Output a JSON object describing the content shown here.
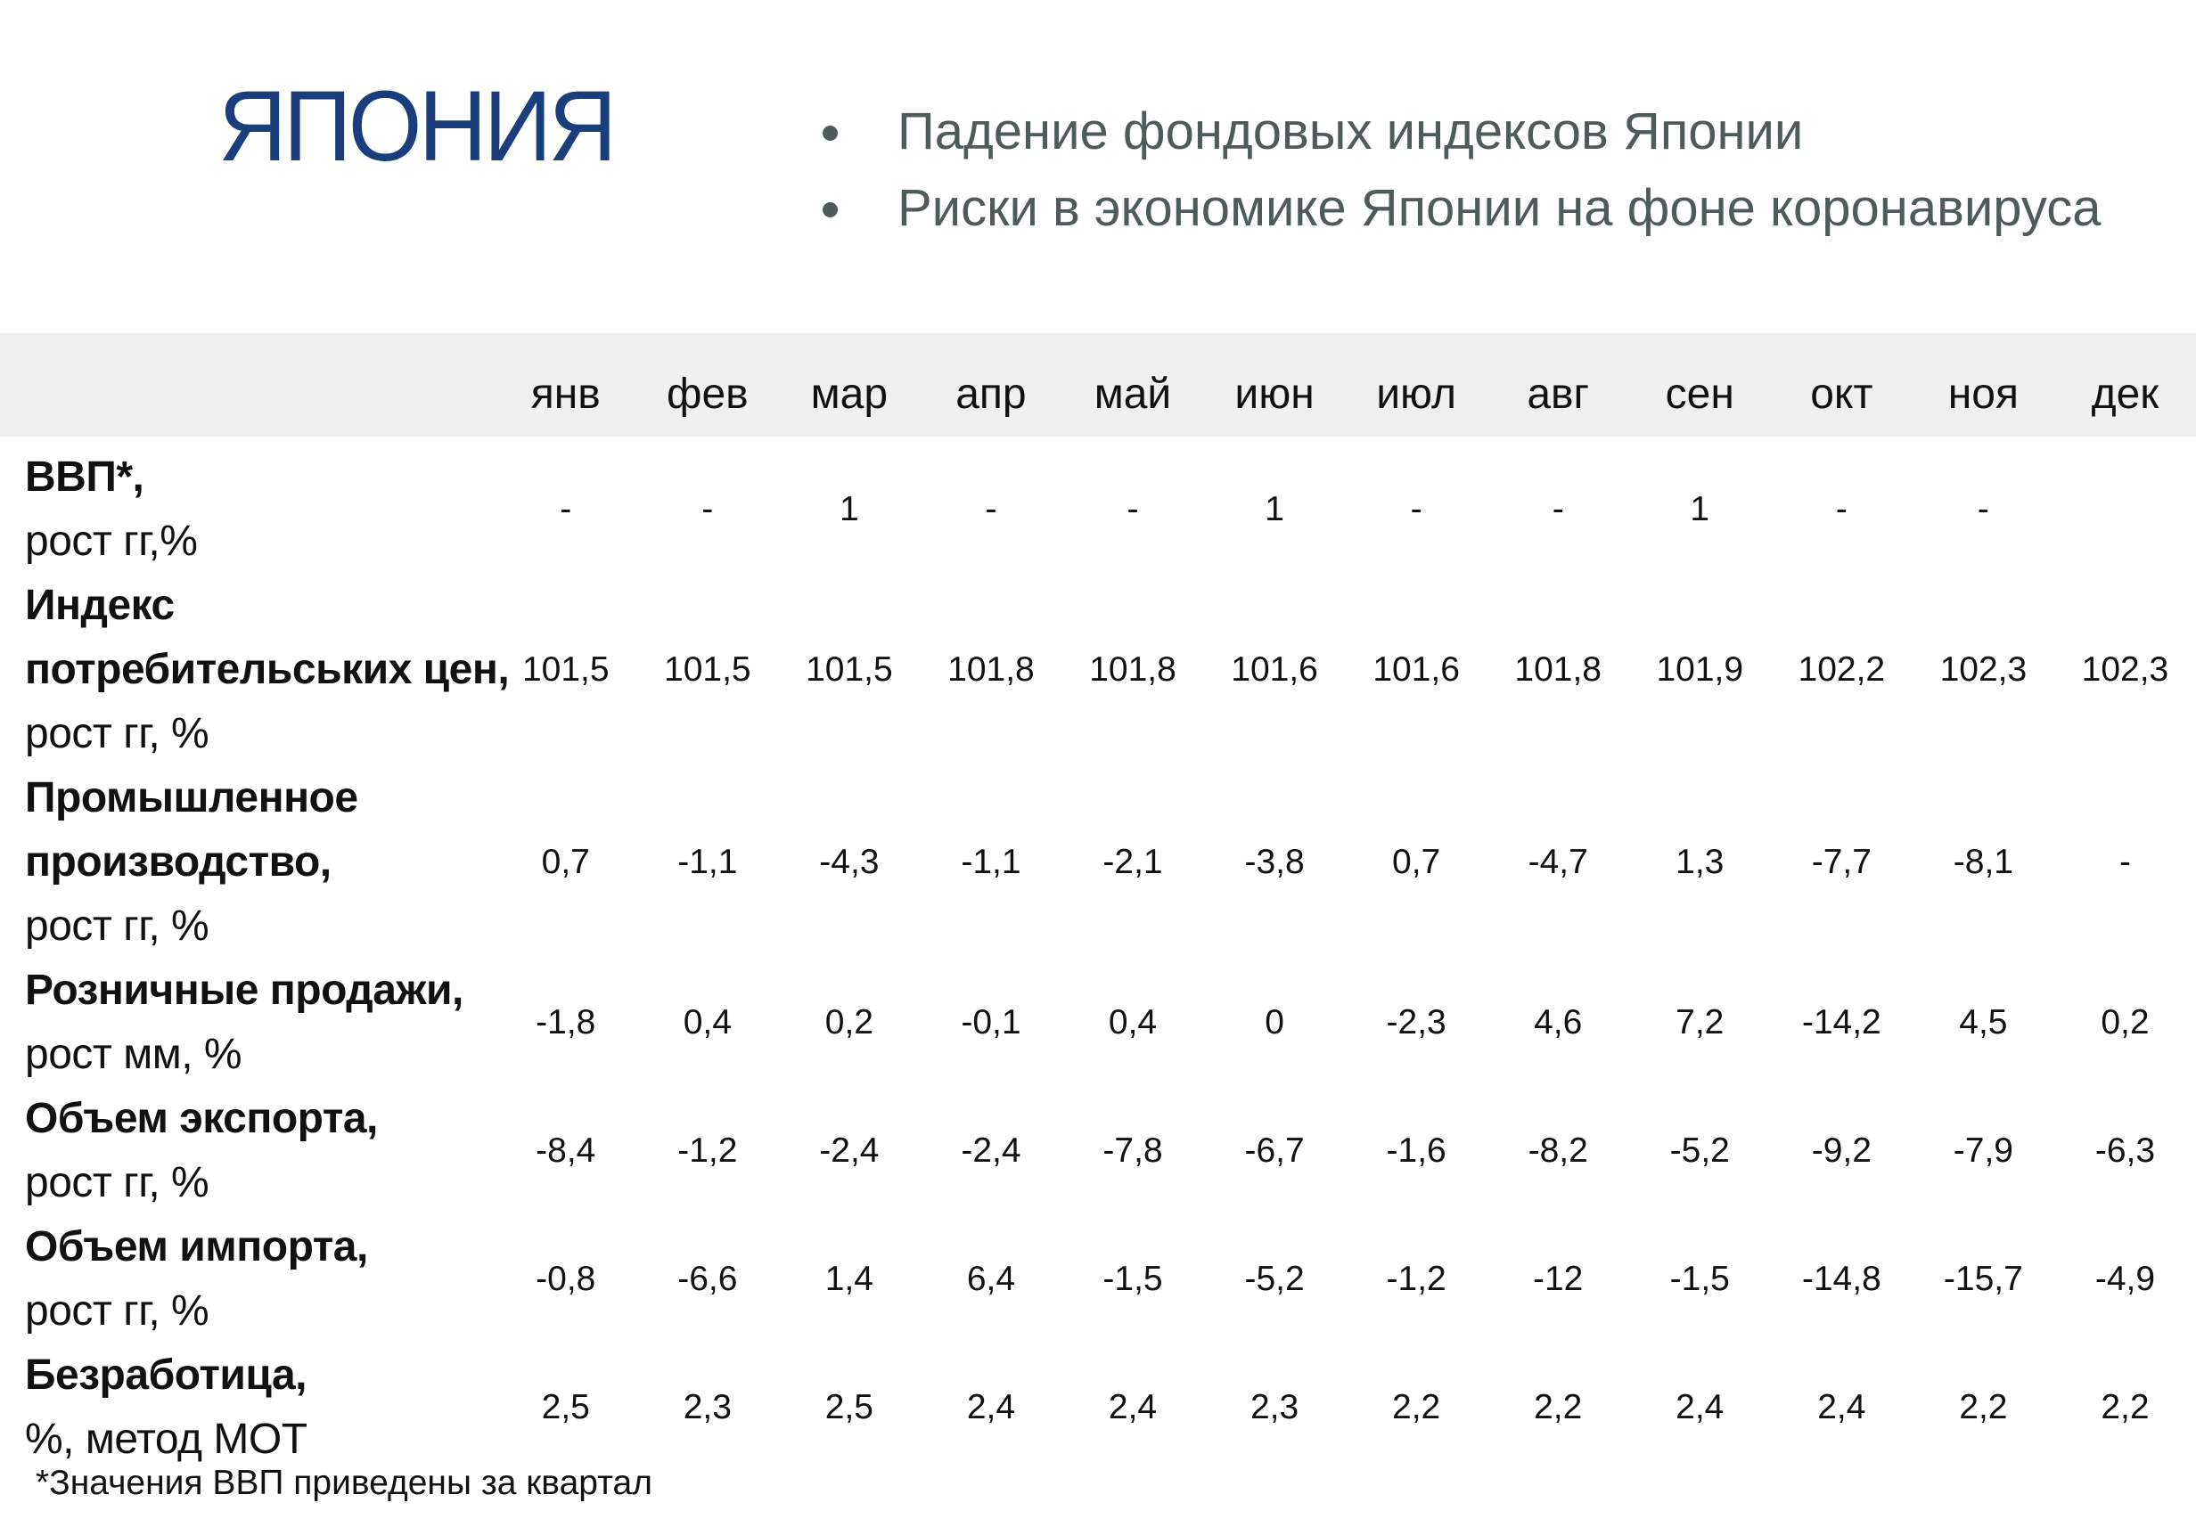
{
  "title": "ЯПОНИЯ",
  "bullets": [
    "Падение фондовых индексов Японии",
    "Риски в экономике Японии на фоне коронавируса"
  ],
  "table": {
    "months": [
      "янв",
      "фев",
      "мар",
      "апр",
      "май",
      "июн",
      "июл",
      "авг",
      "сен",
      "окт",
      "ноя",
      "дек"
    ],
    "rows": [
      {
        "label_bold": [
          "ВВП*,"
        ],
        "label_normal": [
          "рост гг,%"
        ],
        "values": [
          "-",
          "-",
          "1",
          "-",
          "-",
          "1",
          "-",
          "-",
          "1",
          "-",
          "-",
          ""
        ]
      },
      {
        "label_bold": [
          "Индекс",
          "потребительських цен,"
        ],
        "label_normal": [
          "рост гг, %"
        ],
        "values": [
          "101,5",
          "101,5",
          "101,5",
          "101,8",
          "101,8",
          "101,6",
          "101,6",
          "101,8",
          "101,9",
          "102,2",
          "102,3",
          "102,3"
        ]
      },
      {
        "label_bold": [
          "Промышленное",
          "производство,"
        ],
        "label_normal": [
          "рост гг, %"
        ],
        "values": [
          "0,7",
          "-1,1",
          "-4,3",
          "-1,1",
          "-2,1",
          "-3,8",
          "0,7",
          "-4,7",
          "1,3",
          "-7,7",
          "-8,1",
          "-"
        ]
      },
      {
        "label_bold": [
          "Розничные продажи,"
        ],
        "label_normal": [
          "рост мм, %"
        ],
        "values": [
          "-1,8",
          "0,4",
          "0,2",
          "-0,1",
          "0,4",
          "0",
          "-2,3",
          "4,6",
          "7,2",
          "-14,2",
          "4,5",
          "0,2"
        ]
      },
      {
        "label_bold": [
          "Объем экспорта,"
        ],
        "label_normal": [
          "рост гг, %"
        ],
        "values": [
          "-8,4",
          "-1,2",
          "-2,4",
          "-2,4",
          "-7,8",
          "-6,7",
          "-1,6",
          "-8,2",
          "-5,2",
          "-9,2",
          "-7,9",
          "-6,3"
        ]
      },
      {
        "label_bold": [
          "Объем импорта,"
        ],
        "label_normal": [
          "рост гг, %"
        ],
        "values": [
          "-0,8",
          "-6,6",
          "1,4",
          "6,4",
          "-1,5",
          "-5,2",
          "-1,2",
          "-12",
          "-1,5",
          "-14,8",
          "-15,7",
          "-4,9"
        ]
      },
      {
        "label_bold": [
          "Безработица,"
        ],
        "label_normal": [
          "%, метод МОТ"
        ],
        "values": [
          "2,5",
          "2,3",
          "2,5",
          "2,4",
          "2,4",
          "2,3",
          "2,2",
          "2,2",
          "2,4",
          "2,4",
          "2,2",
          "2,2"
        ]
      }
    ]
  },
  "footnote": "*Значения ВВП приведены за квартал"
}
